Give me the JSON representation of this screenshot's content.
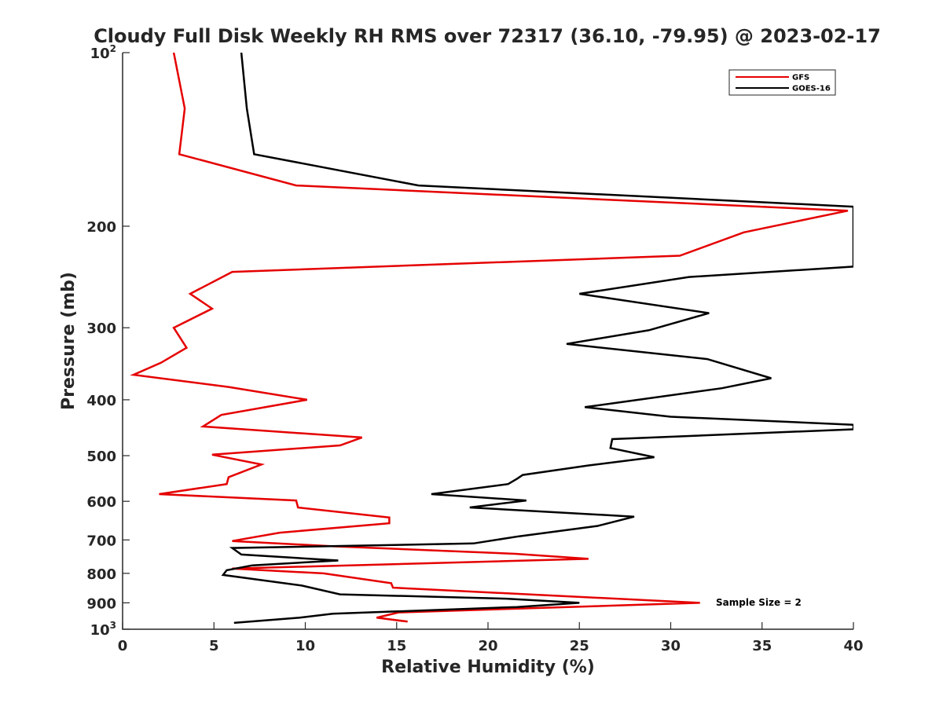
{
  "chart_data": {
    "type": "line",
    "title": "Cloudy Full Disk Weekly RH RMS over 72317 (36.10, -79.95) @ 2023-02-17",
    "xlabel": "Relative Humidity (%)",
    "ylabel": "Pressure (mb)",
    "xlim": [
      0,
      40
    ],
    "ylim": [
      100,
      1000
    ],
    "y_scale": "log",
    "y_reversed": true,
    "grid": false,
    "legend_position": "top-right",
    "x_ticks": [
      0,
      5,
      10,
      15,
      20,
      25,
      30,
      35,
      40
    ],
    "y_ticks": [
      {
        "value": 100,
        "label": "10",
        "sup": "2"
      },
      {
        "value": 200,
        "label": "200",
        "sup": ""
      },
      {
        "value": 300,
        "label": "300",
        "sup": ""
      },
      {
        "value": 400,
        "label": "400",
        "sup": ""
      },
      {
        "value": 500,
        "label": "500",
        "sup": ""
      },
      {
        "value": 600,
        "label": "600",
        "sup": ""
      },
      {
        "value": 700,
        "label": "700",
        "sup": ""
      },
      {
        "value": 800,
        "label": "800",
        "sup": ""
      },
      {
        "value": 900,
        "label": "900",
        "sup": ""
      },
      {
        "value": 1000,
        "label": "10",
        "sup": "3"
      }
    ],
    "series": [
      {
        "name": "GFS",
        "color": "#e50000",
        "points": [
          [
            2.8,
            100
          ],
          [
            3.4,
            125
          ],
          [
            3.1,
            150
          ],
          [
            9.5,
            170
          ],
          [
            39.7,
            188
          ],
          [
            34.0,
            205
          ],
          [
            30.5,
            225
          ],
          [
            6.0,
            240
          ],
          [
            3.7,
            262
          ],
          [
            4.9,
            278
          ],
          [
            2.8,
            300
          ],
          [
            3.5,
            325
          ],
          [
            2.1,
            345
          ],
          [
            0.6,
            362
          ],
          [
            5.8,
            380
          ],
          [
            10.1,
            400
          ],
          [
            5.4,
            425
          ],
          [
            4.4,
            445
          ],
          [
            13.1,
            465
          ],
          [
            11.9,
            480
          ],
          [
            4.9,
            498
          ],
          [
            7.6,
            518
          ],
          [
            5.8,
            545
          ],
          [
            5.7,
            560
          ],
          [
            2.0,
            583
          ],
          [
            9.5,
            598
          ],
          [
            9.6,
            615
          ],
          [
            14.6,
            640
          ],
          [
            14.6,
            655
          ],
          [
            8.6,
            680
          ],
          [
            6.0,
            703
          ],
          [
            11.5,
            718
          ],
          [
            21.5,
            740
          ],
          [
            25.5,
            755
          ],
          [
            6.0,
            785
          ],
          [
            11.0,
            800
          ],
          [
            14.7,
            832
          ],
          [
            14.8,
            847
          ],
          [
            31.6,
            900
          ],
          [
            15.1,
            935
          ],
          [
            14.5,
            945
          ],
          [
            13.9,
            955
          ],
          [
            15.6,
            970
          ]
        ]
      },
      {
        "name": "GOES-16",
        "color": "#000000",
        "points": [
          [
            6.5,
            100
          ],
          [
            6.8,
            125
          ],
          [
            7.2,
            150
          ],
          [
            16.2,
            170
          ],
          [
            40.0,
            185
          ],
          [
            40.0,
            235
          ],
          [
            31.0,
            245
          ],
          [
            25.0,
            262
          ],
          [
            32.1,
            283
          ],
          [
            28.8,
            303
          ],
          [
            24.3,
            320
          ],
          [
            32.0,
            340
          ],
          [
            35.5,
            367
          ],
          [
            32.8,
            382
          ],
          [
            25.3,
            412
          ],
          [
            30.0,
            428
          ],
          [
            40.0,
            442
          ],
          [
            40.0,
            450
          ],
          [
            26.8,
            468
          ],
          [
            26.7,
            485
          ],
          [
            29.1,
            503
          ],
          [
            25.5,
            520
          ],
          [
            21.9,
            540
          ],
          [
            21.6,
            548
          ],
          [
            21.1,
            560
          ],
          [
            16.9,
            583
          ],
          [
            22.1,
            598
          ],
          [
            19.0,
            615
          ],
          [
            28.0,
            638
          ],
          [
            26.0,
            662
          ],
          [
            21.7,
            690
          ],
          [
            19.2,
            710
          ],
          [
            6.0,
            723
          ],
          [
            6.5,
            742
          ],
          [
            11.8,
            760
          ],
          [
            7.1,
            775
          ],
          [
            5.7,
            790
          ],
          [
            5.5,
            805
          ],
          [
            9.8,
            840
          ],
          [
            11.9,
            870
          ],
          [
            21.0,
            885
          ],
          [
            25.0,
            900
          ],
          [
            21.6,
            915
          ],
          [
            11.5,
            940
          ],
          [
            9.7,
            955
          ],
          [
            6.1,
            975
          ]
        ]
      }
    ],
    "annotation": "Sample Size = 2"
  }
}
